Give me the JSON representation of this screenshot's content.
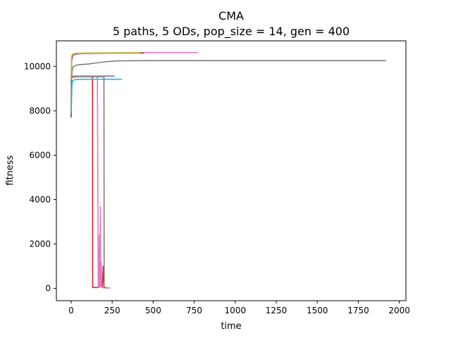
{
  "chart_data": {
    "type": "line",
    "title": "CMA",
    "subtitle": "5 paths, 5 ODs, pop_size = 14, gen = 400",
    "xlabel": "time",
    "ylabel": "fitness",
    "xlim": [
      -90,
      2040
    ],
    "ylim": [
      -550,
      11150
    ],
    "xticks": [
      0,
      250,
      500,
      750,
      1000,
      1250,
      1500,
      1750,
      2000
    ],
    "yticks": [
      0,
      2000,
      4000,
      6000,
      8000,
      10000
    ],
    "grid": false,
    "legend": "none",
    "series": [
      {
        "color": "#7f7f7f",
        "x": [
          0,
          2,
          4,
          8,
          15,
          30,
          60,
          100,
          150,
          200,
          260,
          300,
          400,
          600,
          1000,
          1500,
          1920
        ],
        "y": [
          7700,
          9300,
          9700,
          9900,
          10000,
          10050,
          10080,
          10100,
          10150,
          10200,
          10240,
          10250,
          10255,
          10258,
          10260,
          10260,
          10260
        ]
      },
      {
        "color": "#e377c2",
        "x": [
          0,
          3,
          10,
          30,
          80,
          150,
          250,
          350,
          450,
          600,
          775
        ],
        "y": [
          9600,
          10200,
          10450,
          10550,
          10590,
          10600,
          10610,
          10615,
          10620,
          10620,
          10620
        ]
      },
      {
        "color": "#8c564b",
        "x": [
          0,
          2,
          10,
          50,
          150,
          300,
          445
        ],
        "y": [
          7700,
          10300,
          10550,
          10580,
          10590,
          10600,
          10600
        ]
      },
      {
        "color": "#bcbd22",
        "x": [
          0,
          2,
          5,
          10,
          30,
          100,
          200,
          300,
          420
        ],
        "y": [
          9400,
          10300,
          10500,
          10560,
          10590,
          10600,
          10605,
          10610,
          10610
        ]
      },
      {
        "color": "#d62728",
        "x": [
          0,
          5,
          20,
          60,
          100,
          130,
          131,
          135,
          150,
          170,
          180,
          190,
          195,
          200,
          205,
          210
        ],
        "y": [
          9500,
          9550,
          9560,
          9560,
          9560,
          9560,
          50,
          60,
          40,
          50,
          300,
          40,
          1000,
          60,
          30,
          40
        ]
      },
      {
        "color": "#9467bd",
        "x": [
          0,
          10,
          50,
          100,
          150,
          180,
          200,
          220,
          250,
          265
        ],
        "y": [
          9500,
          9540,
          9550,
          9560,
          9560,
          9560,
          9560,
          9560,
          9560,
          9560
        ]
      },
      {
        "color": "#e377c2",
        "x": [
          0,
          20,
          60,
          100,
          140,
          160,
          165,
          170,
          172,
          175,
          178,
          180,
          183,
          186,
          190,
          200,
          220,
          240
        ],
        "y": [
          9500,
          9550,
          9560,
          9560,
          9560,
          9560,
          50,
          80,
          2400,
          60,
          3700,
          100,
          1200,
          50,
          40,
          30,
          20,
          20
        ]
      },
      {
        "color": "#17becf",
        "x": [
          0,
          5,
          10,
          20,
          50,
          100,
          200,
          310
        ],
        "y": [
          7900,
          9200,
          9350,
          9400,
          9420,
          9420,
          9420,
          9420
        ]
      },
      {
        "color": "#7f7f7f",
        "x": [
          0,
          50,
          100,
          150,
          200,
          201,
          205,
          220
        ],
        "y": [
          9500,
          9540,
          9540,
          9540,
          9540,
          50,
          40,
          40
        ]
      }
    ]
  }
}
